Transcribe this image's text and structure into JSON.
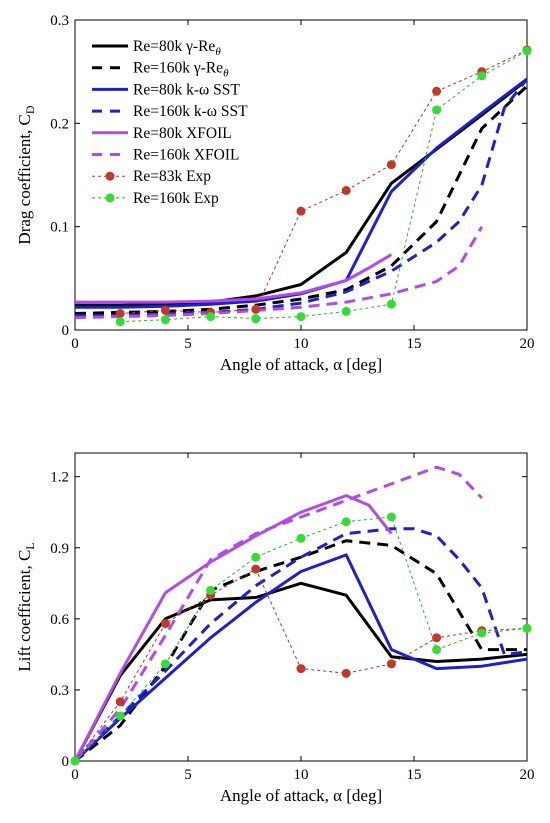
{
  "chart_data": [
    {
      "type": "line",
      "xlabel": "Angle of attack, α [deg]",
      "ylabel": "Drag coefficient, C",
      "ylabel_sub": "D",
      "xlim": [
        0,
        20
      ],
      "ylim": [
        0,
        0.3
      ],
      "xticks": [
        0,
        5,
        10,
        15,
        20
      ],
      "xtick_labels": [
        "0",
        "5",
        "10",
        "15",
        "20"
      ],
      "yticks": [
        0,
        0.1,
        0.2,
        0.3
      ],
      "ytick_labels": [
        "0",
        "0.1",
        "0.2",
        "0.3"
      ],
      "grid": false,
      "legend_position": "top-left",
      "legend": [
        {
          "text": "Re=80k γ-Re",
          "sub": "θ",
          "series": 0
        },
        {
          "text": "Re=160k γ-Re",
          "sub": "θ",
          "series": 1
        },
        {
          "text": "Re=80k k-ω SST",
          "sub": "",
          "series": 2
        },
        {
          "text": "Re=160k k-ω SST",
          "sub": "",
          "series": 3
        },
        {
          "text": "Re=80k XFOIL",
          "sub": "",
          "series": 4
        },
        {
          "text": "Re=160k XFOIL",
          "sub": "",
          "series": 5
        },
        {
          "text": "Re=83k Exp",
          "sub": "",
          "series": 6
        },
        {
          "text": "Re=160k Exp",
          "sub": "",
          "series": 7
        }
      ],
      "series": [
        {
          "color": "#000000",
          "dash": "solid",
          "marker": "none",
          "x": [
            0,
            2,
            4,
            6,
            8,
            10,
            12,
            14,
            16,
            18,
            20
          ],
          "y": [
            0.024,
            0.024,
            0.025,
            0.027,
            0.033,
            0.044,
            0.075,
            0.142,
            0.175,
            0.208,
            0.242
          ]
        },
        {
          "color": "#000000",
          "dash": "dashed",
          "marker": "none",
          "x": [
            0,
            2,
            4,
            6,
            8,
            10,
            12,
            14,
            16,
            17,
            18,
            20
          ],
          "y": [
            0.016,
            0.017,
            0.018,
            0.02,
            0.024,
            0.03,
            0.039,
            0.062,
            0.105,
            0.15,
            0.195,
            0.236
          ]
        },
        {
          "color": "#1f1fd0",
          "dash": "solid",
          "marker": "none",
          "x": [
            0,
            2,
            4,
            6,
            8,
            10,
            12,
            14,
            16,
            18,
            20
          ],
          "y": [
            0.022,
            0.022,
            0.023,
            0.025,
            0.028,
            0.035,
            0.048,
            0.134,
            0.176,
            0.21,
            0.243
          ]
        },
        {
          "color": "#1f1fd0",
          "dash": "dashed",
          "marker": "none",
          "x": [
            0,
            2,
            4,
            6,
            8,
            10,
            12,
            14,
            16,
            17,
            18,
            19,
            20
          ],
          "y": [
            0.014,
            0.014,
            0.015,
            0.017,
            0.02,
            0.026,
            0.037,
            0.057,
            0.085,
            0.105,
            0.14,
            0.215,
            0.243
          ]
        },
        {
          "color": "#b24ce6",
          "dash": "solid",
          "marker": "none",
          "x": [
            0,
            2,
            4,
            6,
            8,
            10,
            12,
            13,
            14
          ],
          "y": [
            0.027,
            0.027,
            0.027,
            0.028,
            0.03,
            0.036,
            0.048,
            0.06,
            0.073
          ]
        },
        {
          "color": "#b24ce6",
          "dash": "dashed",
          "marker": "none",
          "x": [
            0,
            2,
            4,
            6,
            8,
            10,
            12,
            14,
            16,
            17,
            18
          ],
          "y": [
            0.012,
            0.013,
            0.014,
            0.016,
            0.019,
            0.022,
            0.027,
            0.035,
            0.047,
            0.062,
            0.1
          ]
        },
        {
          "color": "#b52e2e",
          "dash": "dotted",
          "marker": "circle",
          "marker_color": "#c0392b",
          "x": [
            2,
            4,
            6,
            8,
            10,
            12,
            14,
            16,
            18,
            20
          ],
          "y": [
            0.016,
            0.019,
            0.017,
            0.02,
            0.115,
            0.135,
            0.16,
            0.231,
            0.25,
            0.271
          ]
        },
        {
          "color": "#22b822",
          "dash": "dotted",
          "marker": "circle",
          "marker_color": "#33dd33",
          "x": [
            2,
            4,
            6,
            8,
            10,
            12,
            14,
            16,
            18,
            20
          ],
          "y": [
            0.008,
            0.01,
            0.013,
            0.011,
            0.013,
            0.018,
            0.025,
            0.213,
            0.246,
            0.27
          ]
        }
      ]
    },
    {
      "type": "line",
      "xlabel": "Angle of attack, α [deg]",
      "ylabel": "Lift coefficient, C",
      "ylabel_sub": "L",
      "xlim": [
        0,
        20
      ],
      "ylim": [
        0,
        1.3
      ],
      "xticks": [
        0,
        5,
        10,
        15,
        20
      ],
      "xtick_labels": [
        "0",
        "5",
        "10",
        "15",
        "20"
      ],
      "yticks": [
        0,
        0.3,
        0.6,
        0.9,
        1.2
      ],
      "ytick_labels": [
        "0",
        "0.3",
        "0.6",
        "0.9",
        "1.2"
      ],
      "grid": false,
      "legend": [],
      "series": [
        {
          "color": "#000000",
          "dash": "solid",
          "marker": "none",
          "x": [
            0,
            2,
            4,
            6,
            8,
            10,
            12,
            14,
            16,
            18,
            20
          ],
          "y": [
            0,
            0.36,
            0.6,
            0.68,
            0.69,
            0.75,
            0.7,
            0.44,
            0.42,
            0.43,
            0.45
          ]
        },
        {
          "color": "#000000",
          "dash": "dashed",
          "marker": "none",
          "x": [
            0,
            2,
            4,
            6,
            8,
            10,
            12,
            14,
            16,
            17,
            18,
            20
          ],
          "y": [
            0,
            0.15,
            0.4,
            0.72,
            0.8,
            0.86,
            0.93,
            0.91,
            0.79,
            0.63,
            0.47,
            0.47
          ]
        },
        {
          "color": "#1f1fd0",
          "dash": "solid",
          "marker": "none",
          "x": [
            0,
            2,
            4,
            6,
            8,
            10,
            12,
            14,
            16,
            18,
            20
          ],
          "y": [
            0,
            0.18,
            0.35,
            0.52,
            0.67,
            0.8,
            0.87,
            0.47,
            0.39,
            0.4,
            0.43
          ]
        },
        {
          "color": "#1f1fd0",
          "dash": "dashed",
          "marker": "none",
          "x": [
            0,
            2,
            4,
            6,
            8,
            10,
            12,
            14,
            15,
            16,
            17,
            18,
            19,
            20
          ],
          "y": [
            0,
            0.19,
            0.38,
            0.58,
            0.74,
            0.86,
            0.96,
            0.98,
            0.98,
            0.95,
            0.85,
            0.73,
            0.45,
            0.46
          ]
        },
        {
          "color": "#b24ce6",
          "dash": "solid",
          "marker": "none",
          "x": [
            0,
            2,
            4,
            6,
            8,
            10,
            12,
            13,
            14
          ],
          "y": [
            0,
            0.37,
            0.71,
            0.84,
            0.95,
            1.05,
            1.12,
            1.08,
            0.96
          ]
        },
        {
          "color": "#b24ce6",
          "dash": "dashed",
          "marker": "none",
          "x": [
            0,
            2,
            4,
            6,
            8,
            10,
            12,
            14,
            16,
            17,
            18
          ],
          "y": [
            0,
            0.22,
            0.53,
            0.85,
            0.96,
            1.03,
            1.1,
            1.17,
            1.24,
            1.21,
            1.11
          ]
        },
        {
          "color": "#b52e2e",
          "dash": "dotted",
          "marker": "circle",
          "marker_color": "#c0392b",
          "x": [
            0,
            2,
            4,
            6,
            8,
            10,
            12,
            14,
            16,
            18,
            20
          ],
          "y": [
            0,
            0.25,
            0.58,
            0.7,
            0.81,
            0.39,
            0.37,
            0.41,
            0.52,
            0.55,
            0.56
          ]
        },
        {
          "color": "#22b822",
          "dash": "dotted",
          "marker": "circle",
          "marker_color": "#33dd33",
          "x": [
            0,
            2,
            4,
            6,
            8,
            10,
            12,
            14,
            16,
            18,
            20
          ],
          "y": [
            0,
            0.19,
            0.41,
            0.72,
            0.86,
            0.94,
            1.01,
            1.03,
            0.47,
            0.54,
            0.56
          ]
        }
      ]
    }
  ]
}
